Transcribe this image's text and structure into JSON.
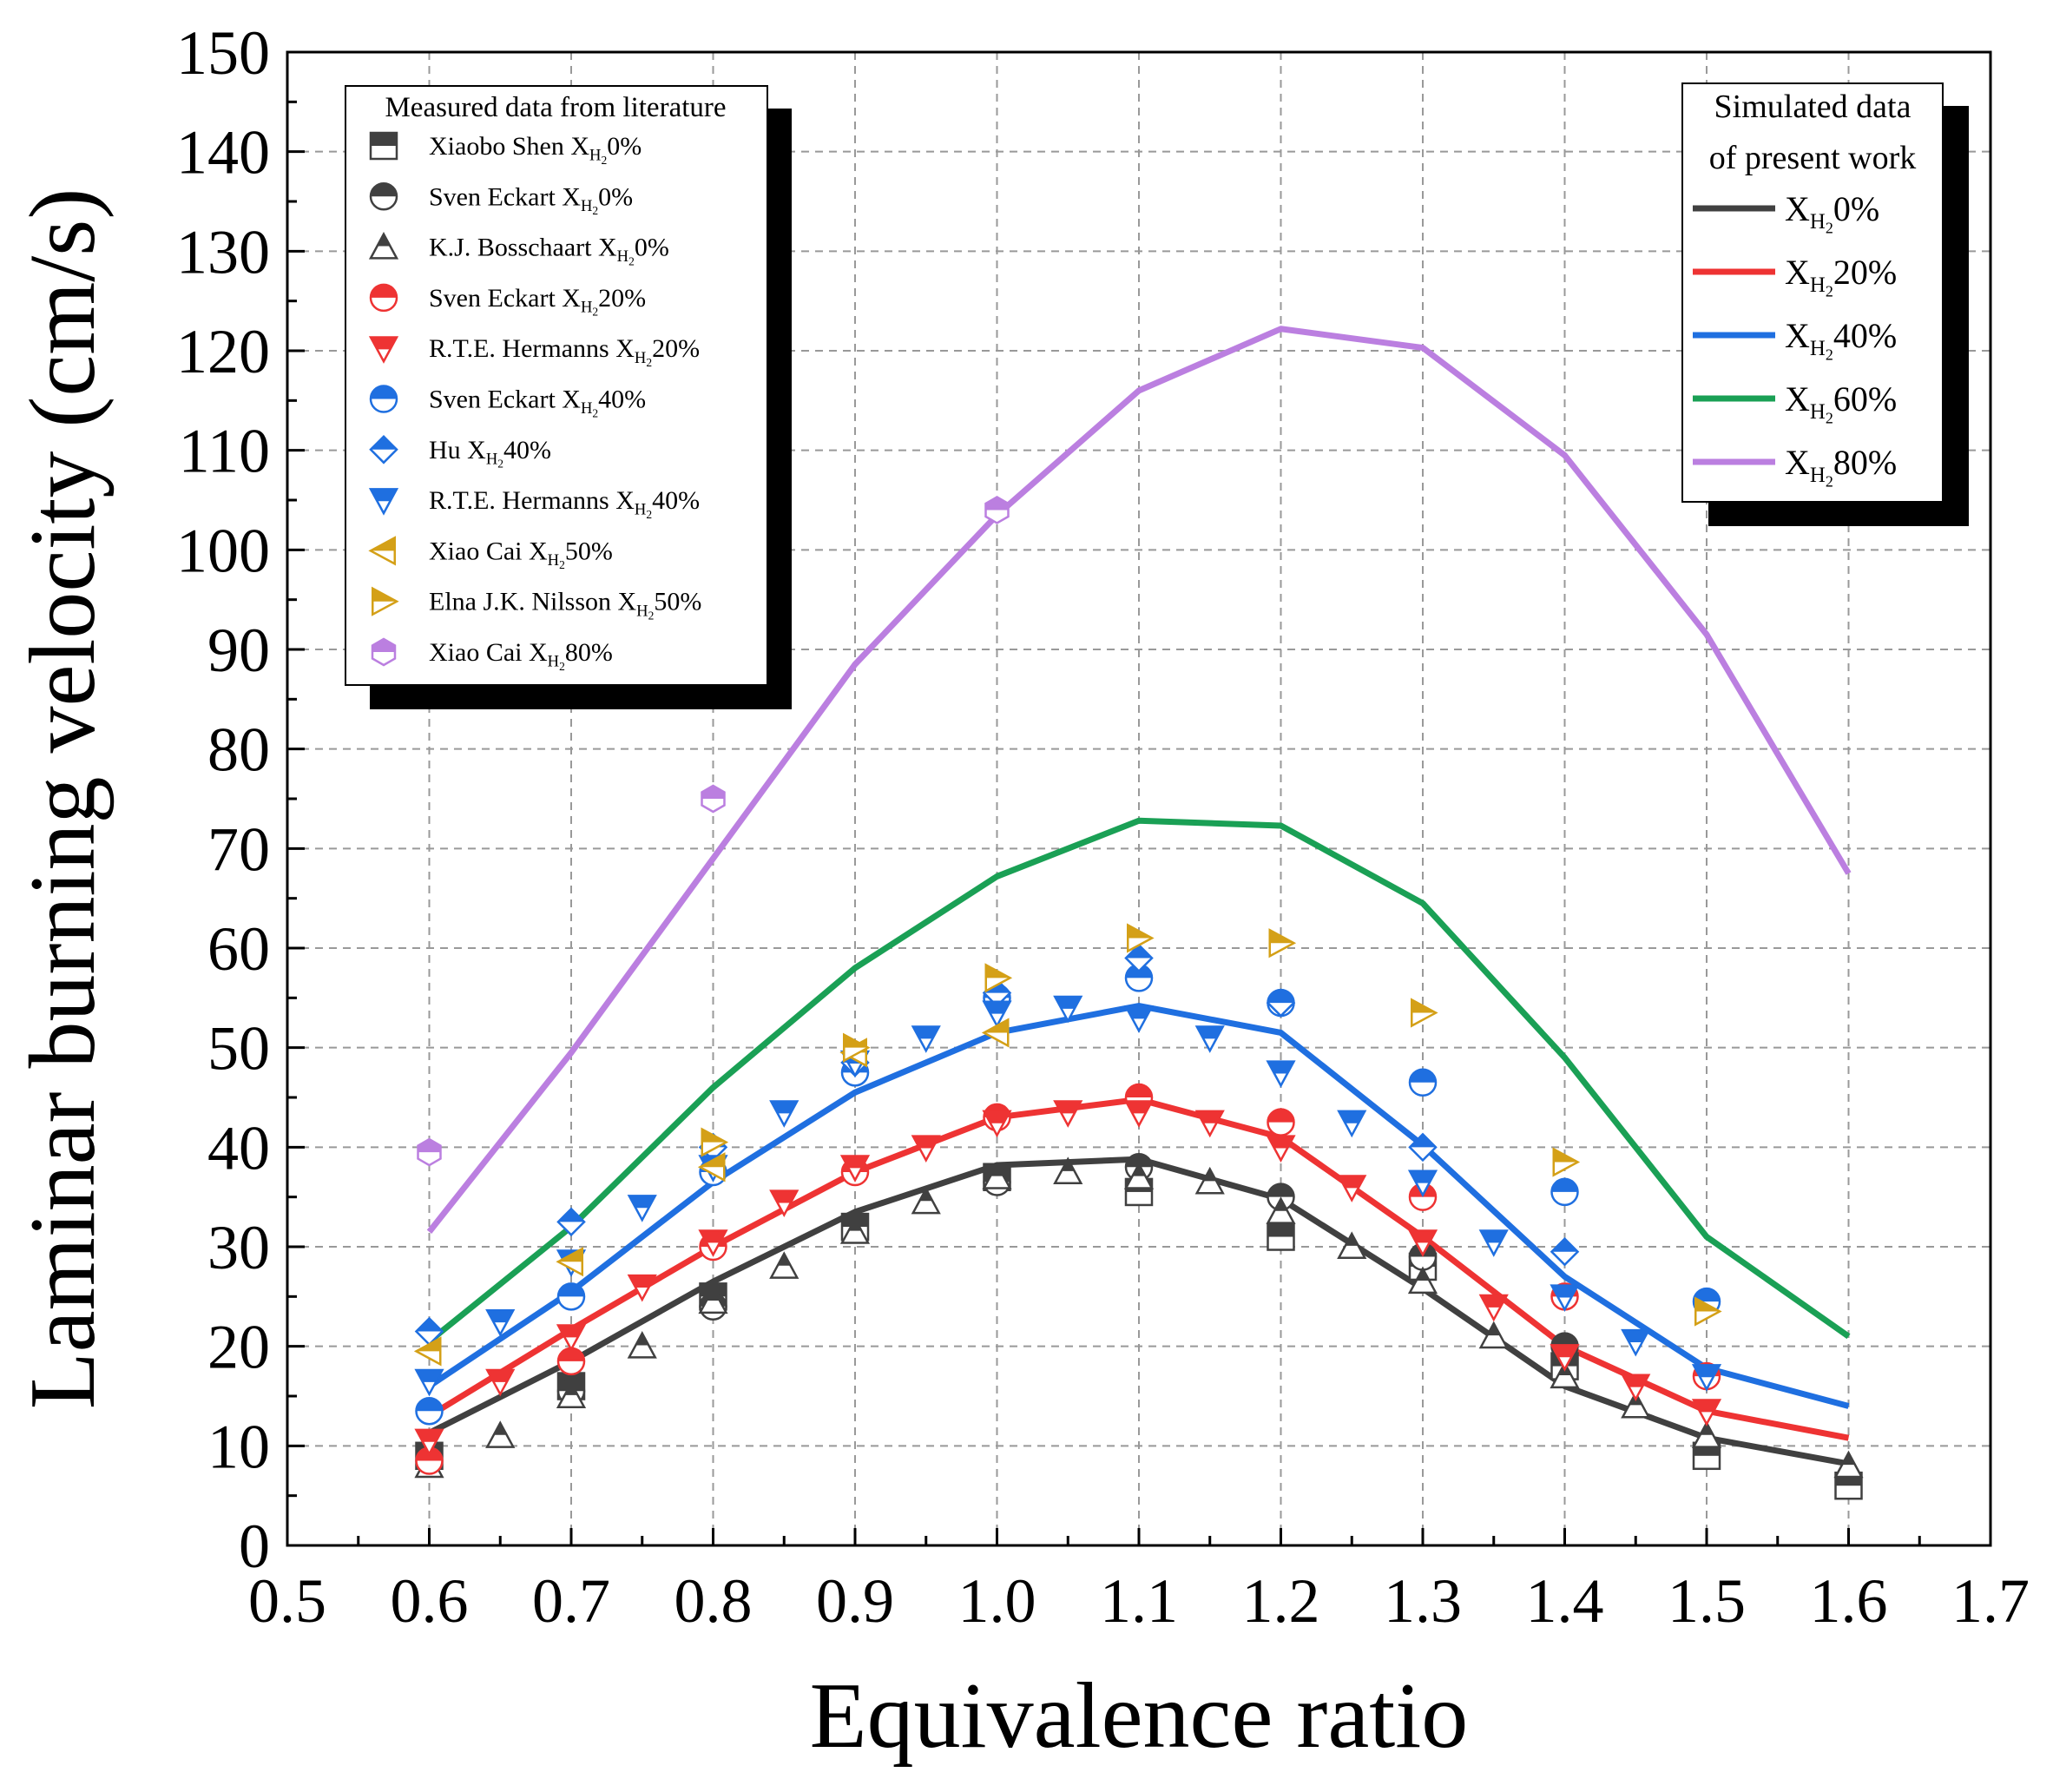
{
  "chart_data": {
    "type": "line",
    "xlabel": "Equivalence ratio",
    "ylabel": "Laminar burning velocity (cm/s)",
    "xlim": [
      0.5,
      1.7
    ],
    "ylim": [
      0,
      150
    ],
    "xticks": [
      "0.5",
      "0.6",
      "0.7",
      "0.8",
      "0.9",
      "1.0",
      "1.1",
      "1.2",
      "1.3",
      "1.4",
      "1.5",
      "1.6",
      "1.7"
    ],
    "yticks": [
      "0",
      "10",
      "20",
      "30",
      "40",
      "50",
      "60",
      "70",
      "80",
      "90",
      "100",
      "110",
      "120",
      "130",
      "140",
      "150"
    ],
    "grid": true,
    "simulated_legend_title": [
      "Simulated data",
      "of present work"
    ],
    "simulated_series": [
      {
        "name": "0%",
        "color": "#404040",
        "x": [
          0.6,
          0.7,
          0.8,
          0.9,
          1.0,
          1.1,
          1.2,
          1.3,
          1.4,
          1.5,
          1.6
        ],
        "y": [
          11.3,
          18.5,
          26.5,
          33.5,
          38.2,
          38.8,
          34.8,
          25.8,
          16.0,
          10.8,
          8.2
        ]
      },
      {
        "name": "20%",
        "color": "#ee3333",
        "x": [
          0.6,
          0.7,
          0.8,
          0.9,
          1.0,
          1.1,
          1.2,
          1.3,
          1.4,
          1.5,
          1.6
        ],
        "y": [
          13.0,
          21.7,
          30.0,
          37.5,
          43.0,
          44.8,
          41.0,
          31.0,
          20.0,
          13.5,
          10.8
        ]
      },
      {
        "name": "40%",
        "color": "#1f6fe0",
        "x": [
          0.6,
          0.7,
          0.8,
          0.9,
          1.0,
          1.1,
          1.2,
          1.3,
          1.4,
          1.5,
          1.6
        ],
        "y": [
          16.0,
          25.5,
          36.5,
          45.5,
          51.5,
          54.2,
          51.5,
          40.2,
          27.0,
          17.8,
          14.0
        ]
      },
      {
        "name": "60%",
        "color": "#1aa055",
        "x": [
          0.6,
          0.7,
          0.8,
          0.9,
          1.0,
          1.1,
          1.2,
          1.3,
          1.4,
          1.5,
          1.6
        ],
        "y": [
          20.5,
          32.0,
          46.0,
          58.0,
          67.2,
          72.8,
          72.3,
          64.5,
          49.0,
          31.0,
          21.0
        ]
      },
      {
        "name": "80%",
        "color": "#bb7fe0",
        "x": [
          0.6,
          0.7,
          0.8,
          0.9,
          1.0,
          1.1,
          1.2,
          1.3,
          1.4,
          1.5,
          1.6
        ],
        "y": [
          31.5,
          49.5,
          69.0,
          88.5,
          103.5,
          116.0,
          122.2,
          120.3,
          109.5,
          91.5,
          67.5
        ]
      }
    ],
    "measured_legend_title": "Measured data from literature",
    "measured_series": [
      {
        "name": "Xiaobo Shen",
        "pct": "0%",
        "marker": "square",
        "color": "#404040",
        "x": [
          0.6,
          0.7,
          0.8,
          0.9,
          1.0,
          1.1,
          1.2,
          1.3,
          1.4,
          1.5,
          1.6
        ],
        "y": [
          9.0,
          16.0,
          25.0,
          32.0,
          37.0,
          35.5,
          31.0,
          28.0,
          18.0,
          9.0,
          6.0
        ]
      },
      {
        "name": "Sven Eckart",
        "pct": "0%",
        "marker": "circle",
        "color": "#404040",
        "x": [
          0.7,
          0.8,
          1.0,
          1.1,
          1.2,
          1.3,
          1.4
        ],
        "y": [
          15.5,
          24.0,
          36.5,
          38.0,
          35.0,
          29.0,
          20.0
        ]
      },
      {
        "name": "K.J. Bosschaart",
        "pct": "0%",
        "marker": "triangle-up",
        "color": "#404040",
        "x": [
          0.6,
          0.65,
          0.7,
          0.75,
          0.8,
          0.85,
          0.9,
          0.95,
          1.0,
          1.05,
          1.1,
          1.15,
          1.2,
          1.25,
          1.3,
          1.35,
          1.4,
          1.45,
          1.5,
          1.6
        ],
        "y": [
          8.0,
          11.0,
          15.0,
          20.0,
          24.5,
          28.0,
          31.5,
          34.5,
          37.0,
          37.5,
          37.0,
          36.5,
          33.5,
          30.0,
          26.5,
          21.0,
          17.0,
          14.0,
          11.0,
          8.0
        ]
      },
      {
        "name": "Sven Eckart",
        "pct": "20%",
        "marker": "circle",
        "color": "#ee3333",
        "x": [
          0.6,
          0.7,
          0.8,
          0.9,
          1.0,
          1.1,
          1.2,
          1.3,
          1.4,
          1.5
        ],
        "y": [
          8.5,
          18.5,
          30.0,
          37.5,
          43.0,
          45.0,
          42.5,
          35.0,
          25.0,
          17.0
        ]
      },
      {
        "name": "R.T.E. Hermanns",
        "pct": "20%",
        "marker": "triangle-down",
        "color": "#ee3333",
        "x": [
          0.6,
          0.65,
          0.7,
          0.75,
          0.8,
          0.85,
          0.9,
          0.95,
          1.0,
          1.05,
          1.1,
          1.15,
          1.2,
          1.25,
          1.3,
          1.35,
          1.4,
          1.45,
          1.5
        ],
        "y": [
          10.5,
          16.5,
          21.0,
          26.0,
          30.5,
          34.5,
          38.0,
          40.0,
          42.5,
          43.5,
          43.5,
          42.5,
          40.0,
          36.0,
          30.5,
          24.0,
          19.0,
          16.0,
          13.5
        ]
      },
      {
        "name": "Sven Eckart",
        "pct": "40%",
        "marker": "circle",
        "color": "#1f6fe0",
        "x": [
          0.6,
          0.7,
          0.8,
          0.9,
          1.0,
          1.1,
          1.2,
          1.3,
          1.4,
          1.5
        ],
        "y": [
          13.5,
          25.0,
          37.5,
          47.5,
          55.0,
          57.0,
          54.5,
          46.5,
          35.5,
          24.5
        ]
      },
      {
        "name": "Hu",
        "pct": "40%",
        "marker": "diamond",
        "color": "#1f6fe0",
        "x": [
          0.6,
          0.7,
          0.8,
          0.9,
          1.0,
          1.1,
          1.2,
          1.3,
          1.4
        ],
        "y": [
          21.5,
          32.5,
          40.0,
          48.5,
          55.5,
          59.0,
          54.5,
          40.0,
          29.5
        ]
      },
      {
        "name": "R.T.E. Hermanns",
        "pct": "40%",
        "marker": "triangle-down",
        "color": "#1f6fe0",
        "x": [
          0.6,
          0.65,
          0.7,
          0.75,
          0.8,
          0.85,
          0.9,
          0.95,
          1.0,
          1.05,
          1.1,
          1.15,
          1.2,
          1.25,
          1.3,
          1.35,
          1.4,
          1.45,
          1.5
        ],
        "y": [
          16.5,
          22.5,
          28.5,
          34.0,
          38.0,
          43.5,
          48.5,
          51.0,
          53.5,
          54.0,
          53.0,
          51.0,
          47.5,
          42.5,
          36.5,
          30.5,
          25.0,
          20.5,
          17.0
        ]
      },
      {
        "name": "Xiao Cai",
        "pct": "50%",
        "marker": "triangle-left",
        "color": "#d4a017",
        "x": [
          0.6,
          0.7,
          0.8,
          0.9,
          1.0
        ],
        "y": [
          19.5,
          28.5,
          38.0,
          49.5,
          51.5
        ]
      },
      {
        "name": "Elna J.K. Nilsson",
        "pct": "50%",
        "marker": "triangle-right",
        "color": "#d4a017",
        "x": [
          0.8,
          0.9,
          1.0,
          1.1,
          1.2,
          1.3,
          1.4,
          1.5
        ],
        "y": [
          40.5,
          50.0,
          57.0,
          61.0,
          60.5,
          53.5,
          38.5,
          23.5
        ]
      },
      {
        "name": "Xiao Cai",
        "pct": "80%",
        "marker": "hexagon",
        "color": "#bb7fe0",
        "x": [
          0.6,
          0.8,
          1.0
        ],
        "y": [
          39.5,
          75.0,
          104.0
        ]
      }
    ]
  },
  "legend_symbol_main": "X",
  "legend_symbol_sub": "H",
  "legend_symbol_subsub": "2"
}
